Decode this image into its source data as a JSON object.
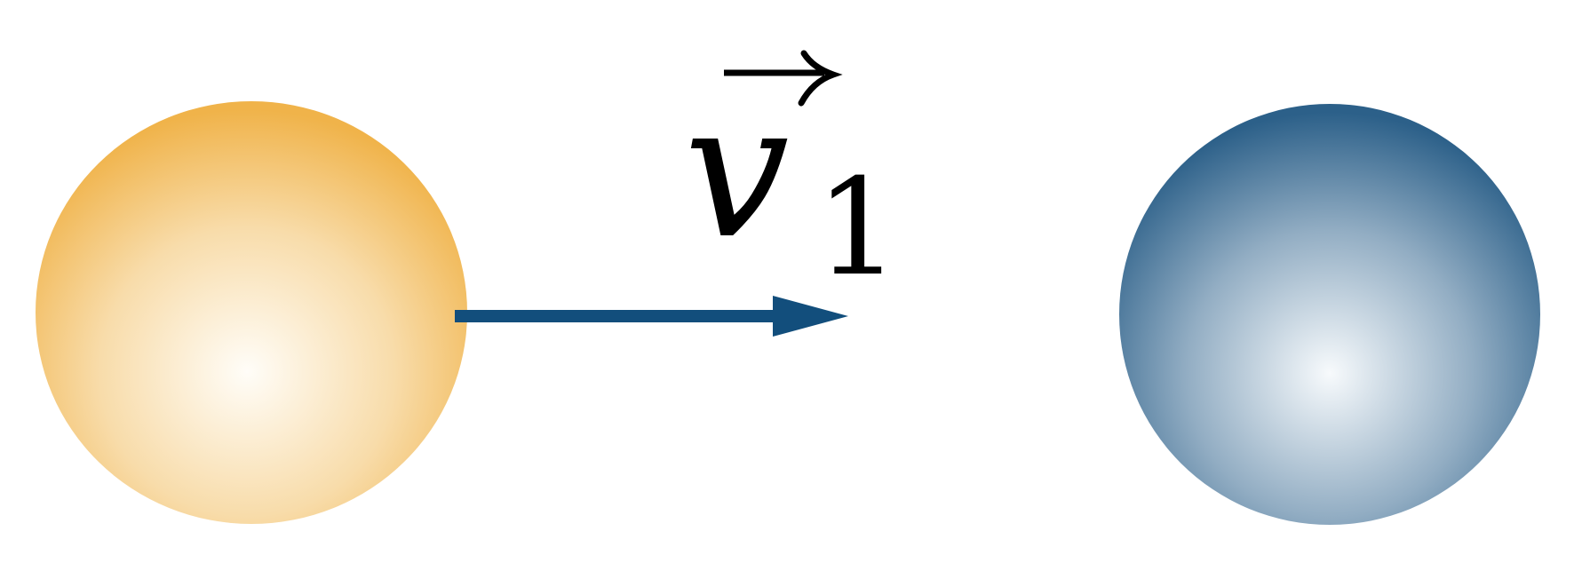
{
  "diagram": {
    "velocity_label": {
      "symbol": "v",
      "subscript": "1"
    },
    "colors": {
      "ball_left_edge": "#f0b34a",
      "ball_left_center": "#fffdf8",
      "ball_right_edge": "#2c6089",
      "ball_right_center": "#f7fafc",
      "arrow": "#124e7c",
      "label": "#000000"
    }
  }
}
